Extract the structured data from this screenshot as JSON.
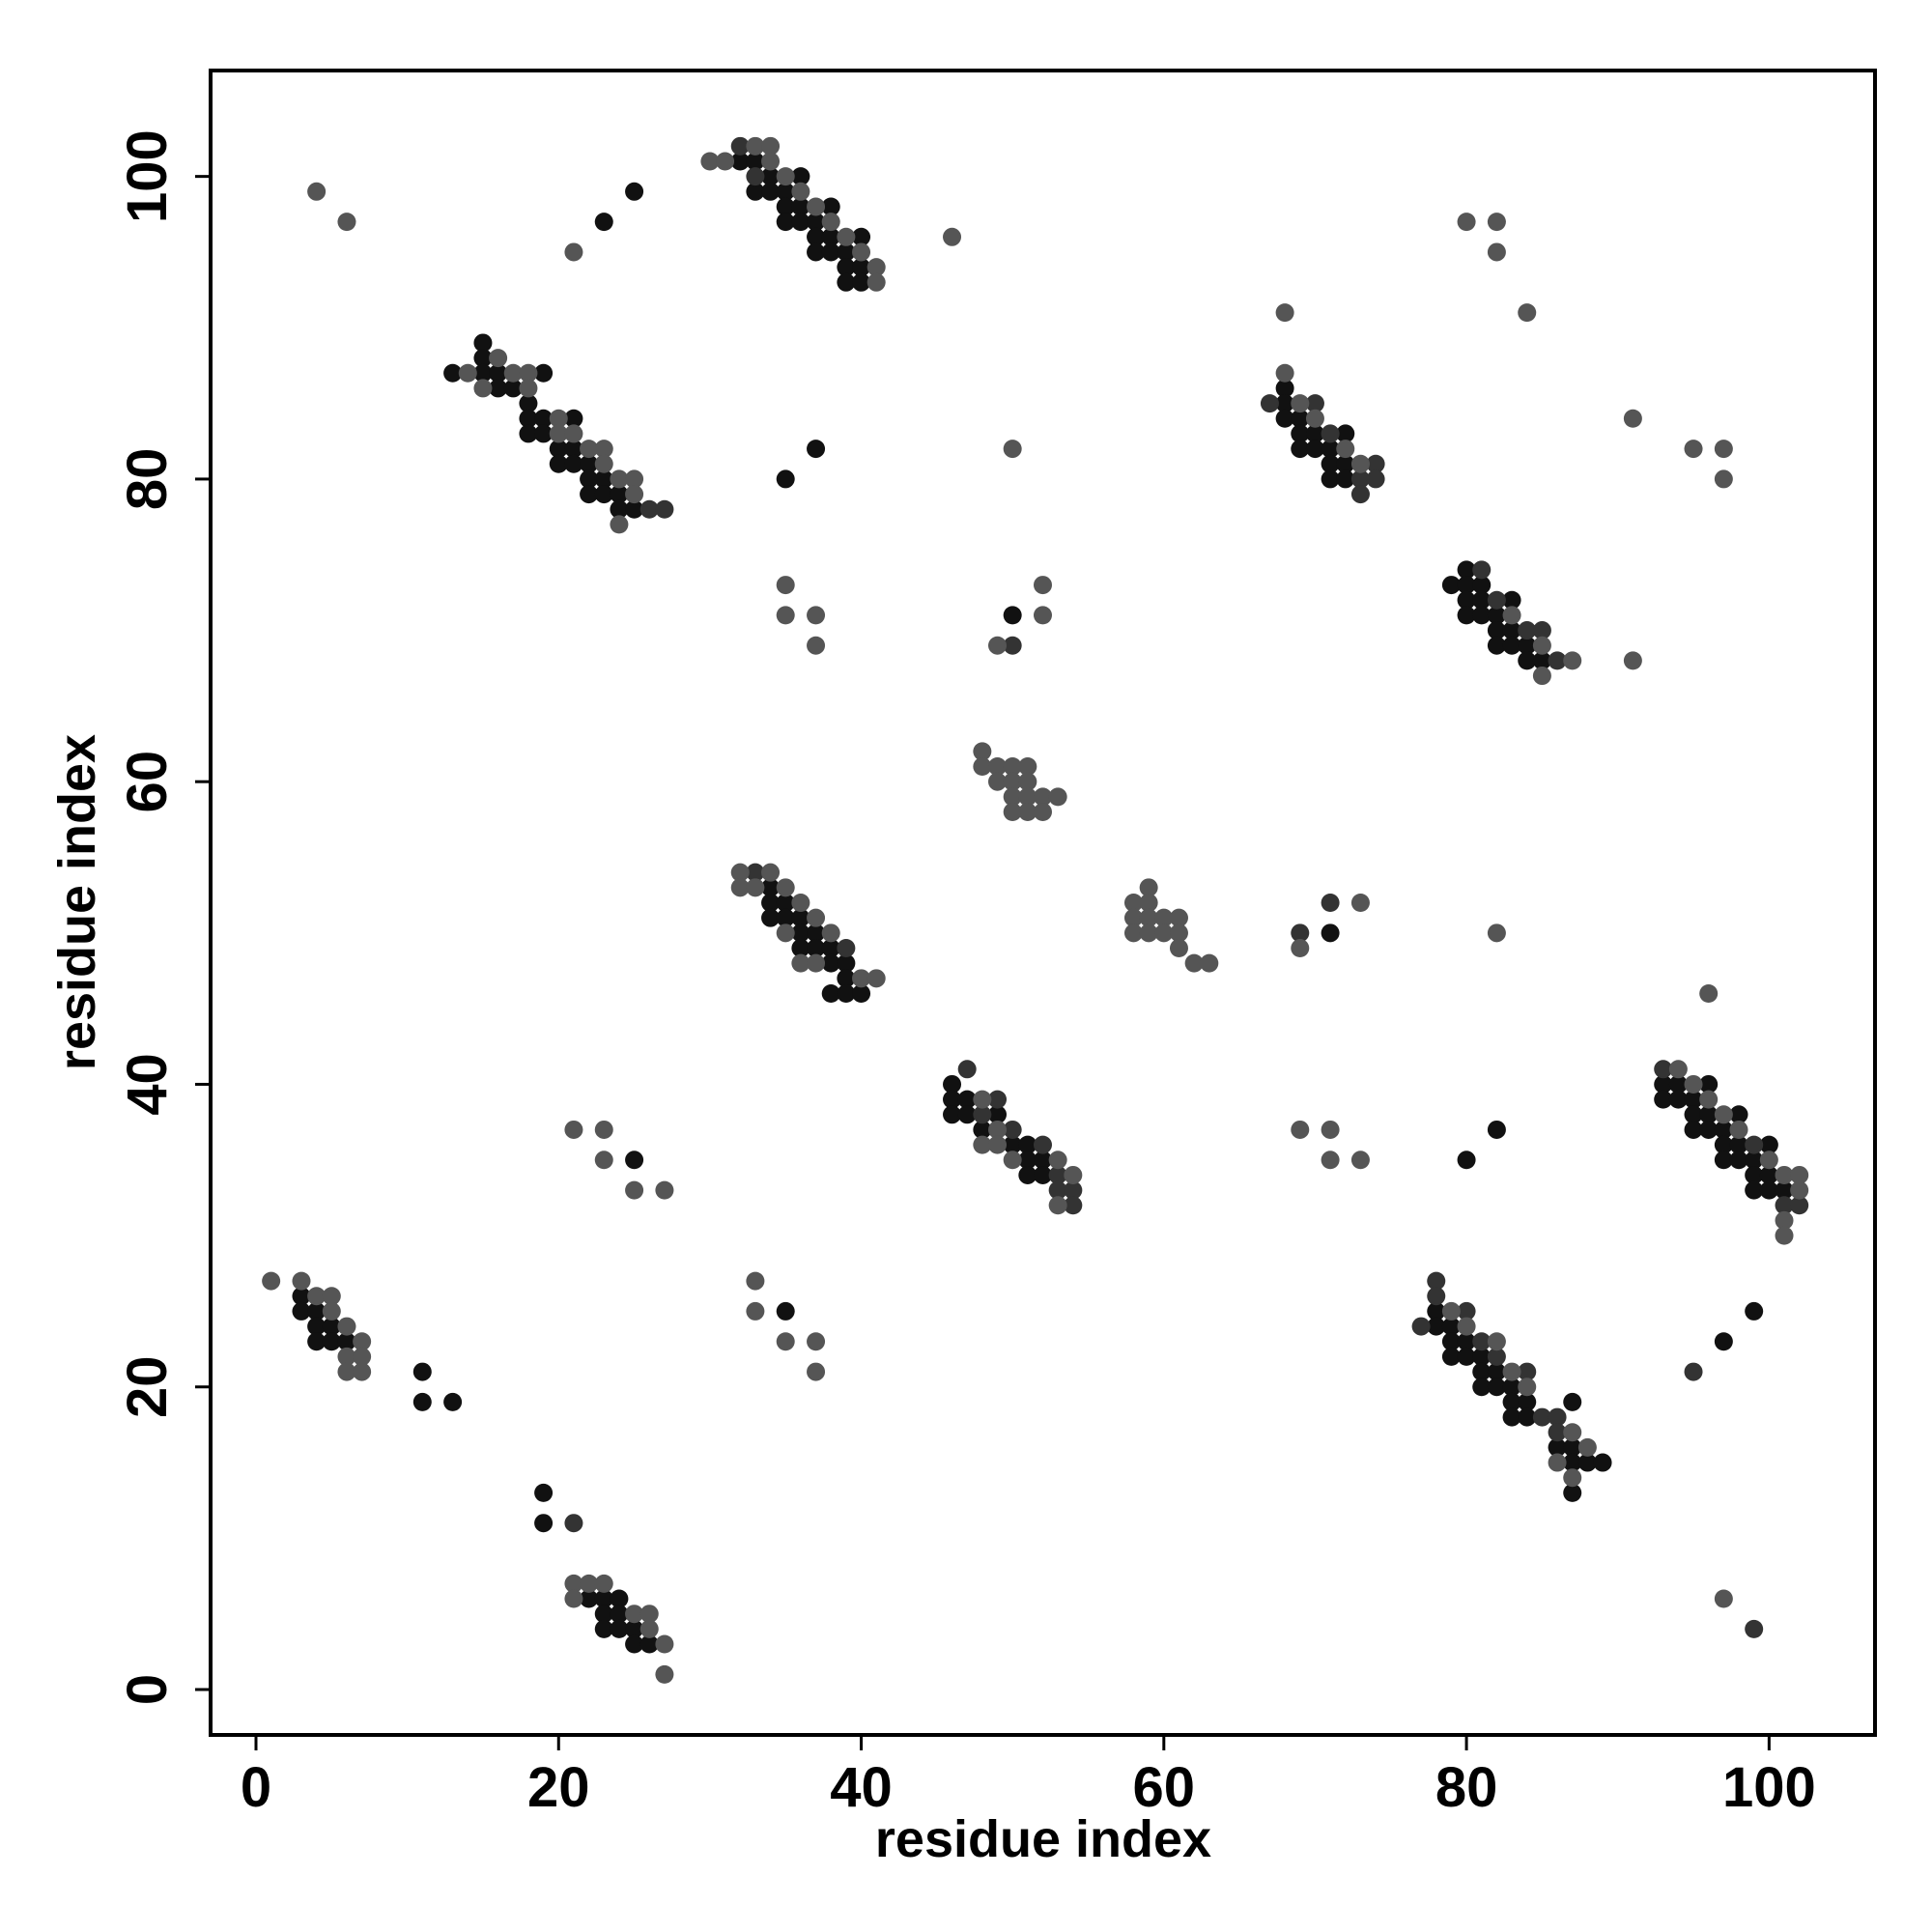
{
  "chart_data": {
    "type": "scatter",
    "x_label": "residue index",
    "y_label": "residue index",
    "xlim": [
      -3,
      107
    ],
    "ylim": [
      -3,
      107
    ],
    "xticks": [
      0,
      20,
      40,
      60,
      80,
      100
    ],
    "yticks": [
      0,
      20,
      40,
      60,
      80,
      100
    ],
    "series": [
      {
        "color": "#111111",
        "x": [
          3,
          3,
          4,
          4,
          5,
          4,
          5,
          6,
          11,
          11,
          13,
          19,
          19,
          22,
          23,
          24,
          23,
          24,
          23,
          24,
          25,
          25,
          26,
          25,
          35,
          35,
          37,
          23,
          25,
          13,
          15,
          15,
          15,
          16,
          19,
          16,
          17,
          18,
          18,
          19,
          21,
          18,
          19,
          20,
          21,
          20,
          21,
          22,
          22,
          23,
          22,
          23,
          24,
          24,
          25,
          32,
          33,
          34,
          36,
          33,
          34,
          35,
          35,
          36,
          38,
          35,
          36,
          37,
          37,
          38,
          40,
          37,
          38,
          39,
          39,
          40,
          39,
          40,
          50,
          34,
          34,
          35,
          34,
          35,
          36,
          36,
          37,
          36,
          37,
          38,
          38,
          39,
          39,
          38,
          39,
          40,
          71,
          46,
          46,
          47,
          46,
          47,
          49,
          48,
          50,
          51,
          51,
          52,
          51,
          52,
          68,
          68,
          68,
          69,
          69,
          70,
          72,
          69,
          70,
          71,
          71,
          72,
          71,
          72,
          79,
          80,
          80,
          81,
          80,
          81,
          83,
          80,
          81,
          82,
          82,
          83,
          82,
          83,
          84,
          84,
          85,
          93,
          94,
          96,
          93,
          94,
          95,
          95,
          96,
          98,
          95,
          96,
          97,
          97,
          98,
          100,
          97,
          98,
          99,
          99,
          100,
          99,
          100,
          101,
          80,
          82,
          78,
          78,
          79,
          79,
          80,
          79,
          80,
          81,
          81,
          82,
          81,
          82,
          83,
          83,
          84,
          83,
          84,
          87,
          86,
          87,
          87,
          88,
          89,
          87,
          97,
          99
        ],
        "values": [
          26,
          25,
          25,
          24,
          24,
          23,
          23,
          23,
          21,
          19,
          19,
          13,
          11,
          6,
          6,
          6,
          5,
          5,
          4,
          4,
          4,
          3,
          3,
          35,
          25,
          80,
          82,
          97,
          99,
          87,
          89,
          88,
          87,
          87,
          87,
          86,
          86,
          85,
          84,
          84,
          84,
          83,
          83,
          82,
          82,
          81,
          81,
          81,
          80,
          80,
          79,
          79,
          79,
          78,
          78,
          101,
          101,
          100,
          100,
          99,
          99,
          99,
          98,
          98,
          98,
          97,
          97,
          97,
          96,
          96,
          96,
          95,
          95,
          95,
          94,
          94,
          93,
          93,
          71,
          53,
          52,
          52,
          51,
          51,
          51,
          50,
          50,
          49,
          49,
          49,
          48,
          48,
          47,
          46,
          46,
          46,
          50,
          40,
          39,
          39,
          38,
          38,
          38,
          37,
          36,
          36,
          35,
          35,
          34,
          34,
          86,
          85,
          84,
          84,
          83,
          83,
          83,
          82,
          82,
          82,
          81,
          81,
          80,
          80,
          73,
          74,
          73,
          73,
          72,
          72,
          72,
          71,
          71,
          71,
          70,
          70,
          69,
          69,
          69,
          68,
          68,
          40,
          40,
          40,
          39,
          39,
          39,
          38,
          38,
          38,
          37,
          37,
          37,
          36,
          36,
          36,
          35,
          35,
          35,
          34,
          34,
          33,
          33,
          33,
          35,
          37,
          25,
          24,
          24,
          23,
          23,
          22,
          22,
          22,
          21,
          21,
          20,
          20,
          20,
          19,
          19,
          18,
          18,
          19,
          16,
          16,
          15,
          15,
          15,
          13,
          23,
          25
        ]
      },
      {
        "color": "#333333",
        "x": [
          21,
          26,
          27,
          32,
          33,
          50,
          33,
          39,
          69,
          71,
          47,
          48,
          49,
          50,
          52,
          53,
          53,
          54,
          54,
          67,
          70,
          71,
          74,
          73,
          74,
          73,
          81,
          82,
          84,
          85,
          86,
          93,
          99,
          101,
          102,
          78,
          78,
          80,
          77,
          81,
          82,
          84,
          85,
          86,
          86,
          95,
          99
        ],
        "values": [
          11,
          78,
          78,
          102,
          100,
          69,
          54,
          49,
          50,
          52,
          41,
          38,
          39,
          37,
          36,
          34,
          33,
          33,
          32,
          85,
          85,
          83,
          81,
          80,
          80,
          79,
          74,
          72,
          70,
          70,
          68,
          41,
          36,
          32,
          32,
          27,
          26,
          25,
          24,
          23,
          22,
          21,
          18,
          18,
          17,
          21,
          4
        ]
      },
      {
        "color": "#555555",
        "x": [
          1,
          3,
          4,
          5,
          5,
          6,
          7,
          6,
          7,
          6,
          7,
          21,
          22,
          23,
          21,
          25,
          26,
          26,
          27,
          27,
          21,
          23,
          23,
          25,
          27,
          33,
          33,
          35,
          37,
          37,
          35,
          35,
          37,
          37,
          4,
          6,
          21,
          14,
          16,
          17,
          18,
          15,
          18,
          20,
          20,
          21,
          22,
          23,
          23,
          24,
          25,
          25,
          24,
          30,
          31,
          33,
          34,
          34,
          35,
          36,
          37,
          38,
          39,
          40,
          41,
          41,
          46,
          50,
          49,
          52,
          52,
          48,
          48,
          49,
          50,
          51,
          49,
          50,
          51,
          50,
          51,
          52,
          53,
          50,
          51,
          52,
          32,
          34,
          32,
          33,
          35,
          36,
          37,
          35,
          38,
          36,
          37,
          40,
          41,
          59,
          58,
          59,
          58,
          59,
          60,
          61,
          58,
          59,
          60,
          61,
          61,
          62,
          63,
          69,
          73,
          48,
          49,
          48,
          49,
          50,
          53,
          54,
          53,
          69,
          71,
          71,
          73,
          68,
          68,
          69,
          70,
          72,
          73,
          83,
          85,
          87,
          85,
          91,
          91,
          95,
          97,
          97,
          80,
          82,
          82,
          84,
          82,
          96,
          94,
          95,
          96,
          97,
          98,
          100,
          101,
          102,
          102,
          101,
          101,
          79,
          80,
          82,
          83,
          84,
          87,
          88,
          86,
          87,
          97
        ],
        "values": [
          27,
          27,
          26,
          26,
          25,
          24,
          23,
          22,
          22,
          21,
          21,
          7,
          7,
          7,
          6,
          5,
          5,
          4,
          3,
          1,
          37,
          37,
          35,
          33,
          33,
          27,
          25,
          23,
          23,
          21,
          73,
          71,
          71,
          69,
          99,
          97,
          95,
          87,
          88,
          87,
          87,
          86,
          86,
          84,
          83,
          83,
          82,
          82,
          81,
          80,
          80,
          79,
          77,
          101,
          101,
          102,
          102,
          101,
          100,
          99,
          98,
          97,
          96,
          95,
          94,
          93,
          96,
          82,
          69,
          71,
          73,
          62,
          61,
          61,
          61,
          61,
          60,
          60,
          60,
          59,
          59,
          59,
          59,
          58,
          58,
          58,
          54,
          54,
          53,
          53,
          53,
          52,
          51,
          50,
          50,
          48,
          48,
          47,
          47,
          53,
          52,
          52,
          51,
          51,
          51,
          51,
          50,
          50,
          50,
          50,
          49,
          48,
          48,
          49,
          52,
          39,
          37,
          36,
          36,
          35,
          35,
          34,
          32,
          37,
          37,
          35,
          35,
          91,
          87,
          85,
          84,
          82,
          81,
          71,
          69,
          68,
          67,
          68,
          84,
          82,
          82,
          80,
          97,
          97,
          95,
          91,
          50,
          46,
          41,
          40,
          39,
          38,
          37,
          35,
          34,
          34,
          33,
          31,
          30,
          25,
          24,
          23,
          21,
          20,
          17,
          16,
          15,
          14,
          6
        ]
      }
    ]
  }
}
